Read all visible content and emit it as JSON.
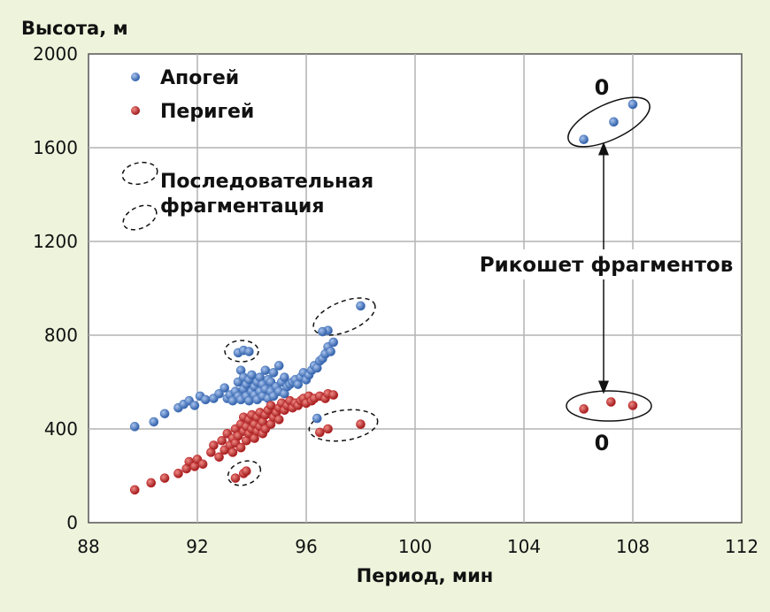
{
  "chart_data": {
    "type": "scatter",
    "ylabel": "Высота, м",
    "xlabel": "Период, мин",
    "xlim": [
      88,
      112
    ],
    "ylim": [
      0,
      2000
    ],
    "xticks": [
      88,
      92,
      96,
      100,
      104,
      108,
      112
    ],
    "yticks": [
      0,
      400,
      800,
      1200,
      1600,
      2000
    ],
    "grid": true,
    "legend_position": "top-left",
    "legend": {
      "apogee": "Апогей",
      "perigee": "Перигей",
      "sequential_line1": "Последовательная",
      "sequential_line2": "фрагментация"
    },
    "annotations": {
      "ricochet": "Рикошет фрагментов",
      "zero_top": "0",
      "zero_bottom": "0"
    },
    "colors": {
      "background": "#eef3dc",
      "apogee": "#4a78be",
      "perigee": "#c0282a"
    },
    "series": [
      {
        "name": "Апогей",
        "points": [
          [
            89.7,
            410
          ],
          [
            90.4,
            430
          ],
          [
            90.8,
            465
          ],
          [
            91.3,
            490
          ],
          [
            91.5,
            505
          ],
          [
            91.7,
            520
          ],
          [
            91.9,
            500
          ],
          [
            92.1,
            540
          ],
          [
            92.3,
            525
          ],
          [
            92.6,
            530
          ],
          [
            92.8,
            550
          ],
          [
            93.0,
            575
          ],
          [
            93.1,
            530
          ],
          [
            93.2,
            545
          ],
          [
            93.3,
            520
          ],
          [
            93.4,
            560
          ],
          [
            93.5,
            540
          ],
          [
            93.5,
            600
          ],
          [
            93.6,
            525
          ],
          [
            93.6,
            650
          ],
          [
            93.7,
            570
          ],
          [
            93.7,
            620
          ],
          [
            93.8,
            540
          ],
          [
            93.8,
            590
          ],
          [
            93.9,
            520
          ],
          [
            93.9,
            610
          ],
          [
            94.0,
            560
          ],
          [
            94.0,
            630
          ],
          [
            94.1,
            545
          ],
          [
            94.1,
            580
          ],
          [
            94.2,
            600
          ],
          [
            94.2,
            525
          ],
          [
            94.3,
            560
          ],
          [
            94.3,
            620
          ],
          [
            94.4,
            540
          ],
          [
            94.4,
            590
          ],
          [
            94.5,
            570
          ],
          [
            94.5,
            650
          ],
          [
            94.6,
            530
          ],
          [
            94.6,
            610
          ],
          [
            94.7,
            560
          ],
          [
            94.7,
            600
          ],
          [
            94.8,
            540
          ],
          [
            94.8,
            640
          ],
          [
            94.9,
            580
          ],
          [
            95.0,
            560
          ],
          [
            95.0,
            670
          ],
          [
            95.1,
            600
          ],
          [
            95.2,
            550
          ],
          [
            95.2,
            620
          ],
          [
            95.3,
            580
          ],
          [
            95.4,
            590
          ],
          [
            95.5,
            600
          ],
          [
            95.6,
            610
          ],
          [
            95.7,
            590
          ],
          [
            95.8,
            620
          ],
          [
            95.9,
            640
          ],
          [
            96.0,
            610
          ],
          [
            96.1,
            630
          ],
          [
            96.2,
            650
          ],
          [
            96.3,
            670
          ],
          [
            96.4,
            660
          ],
          [
            96.5,
            690
          ],
          [
            96.6,
            700
          ],
          [
            96.7,
            720
          ],
          [
            96.8,
            750
          ],
          [
            96.9,
            730
          ],
          [
            97.0,
            770
          ],
          [
            96.8,
            820
          ],
          [
            96.6,
            815
          ],
          [
            98.0,
            925
          ],
          [
            93.5,
            725
          ],
          [
            93.7,
            735
          ],
          [
            93.9,
            730
          ],
          [
            96.4,
            445
          ],
          [
            106.2,
            1635
          ],
          [
            107.3,
            1710
          ],
          [
            108.0,
            1785
          ]
        ]
      },
      {
        "name": "Перигей",
        "points": [
          [
            89.7,
            140
          ],
          [
            90.3,
            170
          ],
          [
            90.8,
            190
          ],
          [
            91.3,
            210
          ],
          [
            91.6,
            230
          ],
          [
            91.7,
            260
          ],
          [
            91.9,
            240
          ],
          [
            92.0,
            270
          ],
          [
            92.2,
            250
          ],
          [
            92.5,
            300
          ],
          [
            92.6,
            330
          ],
          [
            92.8,
            280
          ],
          [
            92.9,
            350
          ],
          [
            93.0,
            310
          ],
          [
            93.1,
            380
          ],
          [
            93.2,
            330
          ],
          [
            93.3,
            360
          ],
          [
            93.3,
            300
          ],
          [
            93.4,
            400
          ],
          [
            93.4,
            340
          ],
          [
            93.5,
            370
          ],
          [
            93.6,
            420
          ],
          [
            93.6,
            320
          ],
          [
            93.7,
            390
          ],
          [
            93.7,
            450
          ],
          [
            93.8,
            350
          ],
          [
            93.8,
            410
          ],
          [
            93.9,
            380
          ],
          [
            93.9,
            440
          ],
          [
            94.0,
            400
          ],
          [
            94.0,
            460
          ],
          [
            94.1,
            360
          ],
          [
            94.1,
            420
          ],
          [
            94.2,
            390
          ],
          [
            94.2,
            450
          ],
          [
            94.3,
            410
          ],
          [
            94.3,
            470
          ],
          [
            94.4,
            380
          ],
          [
            94.4,
            430
          ],
          [
            94.5,
            460
          ],
          [
            94.5,
            400
          ],
          [
            94.6,
            480
          ],
          [
            94.7,
            420
          ],
          [
            94.7,
            500
          ],
          [
            94.8,
            450
          ],
          [
            94.9,
            470
          ],
          [
            95.0,
            490
          ],
          [
            95.0,
            440
          ],
          [
            95.1,
            510
          ],
          [
            95.2,
            480
          ],
          [
            95.3,
            500
          ],
          [
            95.4,
            520
          ],
          [
            95.5,
            490
          ],
          [
            95.6,
            510
          ],
          [
            95.7,
            500
          ],
          [
            95.8,
            520
          ],
          [
            95.9,
            530
          ],
          [
            96.0,
            510
          ],
          [
            96.1,
            540
          ],
          [
            96.2,
            520
          ],
          [
            96.3,
            530
          ],
          [
            96.5,
            540
          ],
          [
            96.7,
            530
          ],
          [
            96.8,
            550
          ],
          [
            97.0,
            545
          ],
          [
            93.4,
            190
          ],
          [
            93.7,
            210
          ],
          [
            93.8,
            220
          ],
          [
            96.5,
            385
          ],
          [
            96.8,
            400
          ],
          [
            98.0,
            420
          ],
          [
            106.2,
            485
          ],
          [
            107.2,
            515
          ],
          [
            108.0,
            500
          ]
        ]
      }
    ]
  }
}
